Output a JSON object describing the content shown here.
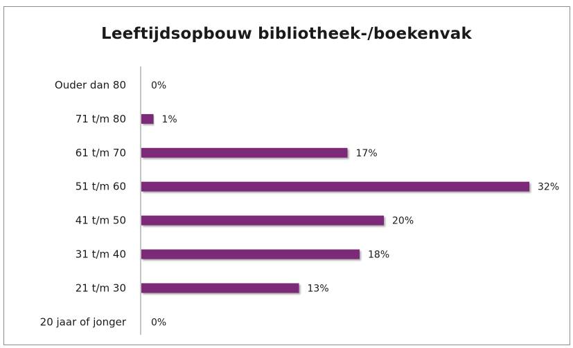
{
  "chart_data": {
    "type": "bar",
    "orientation": "horizontal",
    "title": "Leeftijdsopbouw bibliotheek-/boekenvak",
    "xlabel": "",
    "ylabel": "",
    "categories": [
      "Ouder dan 80",
      "71 t/m 80",
      "61 t/m 70",
      "51 t/m 60",
      "41 t/m 50",
      "31 t/m 40",
      "21 t/m 30",
      "20 jaar of jonger"
    ],
    "values": [
      0,
      1,
      17,
      32,
      20,
      18,
      13,
      0
    ],
    "value_labels": [
      "0%",
      "1%",
      "17%",
      "32%",
      "20%",
      "18%",
      "13%",
      "0%"
    ],
    "xlim": [
      0,
      32
    ],
    "grid": false,
    "legend": "none",
    "bar_color": "#7b2a78"
  }
}
